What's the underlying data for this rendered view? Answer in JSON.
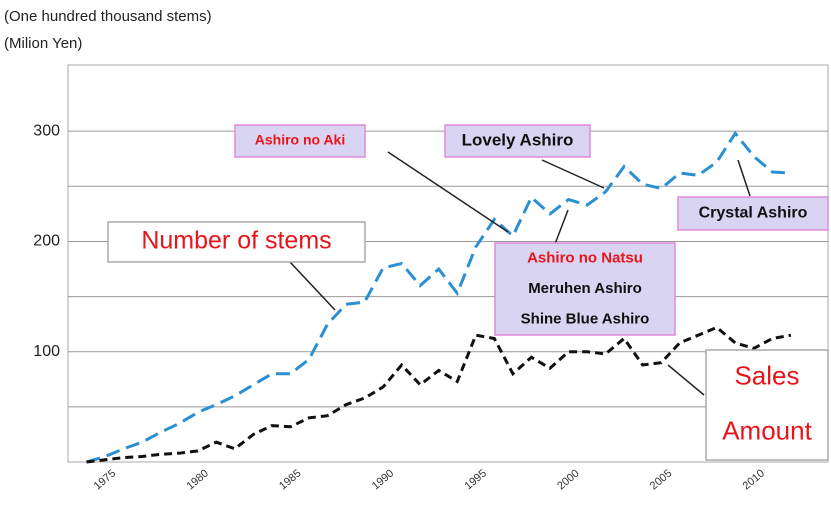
{
  "chart_data": {
    "type": "line",
    "axis_titles": [
      "(One hundred thousand stems)",
      "(Milion Yen)"
    ],
    "x": [
      1974,
      1975,
      1976,
      1977,
      1978,
      1979,
      1980,
      1981,
      1982,
      1983,
      1984,
      1985,
      1986,
      1987,
      1988,
      1989,
      1990,
      1991,
      1992,
      1993,
      1994,
      1995,
      1996,
      1997,
      1998,
      1999,
      2000,
      2001,
      2002,
      2003,
      2004,
      2005,
      2006,
      2007,
      2008,
      2009,
      2010,
      2011,
      2012
    ],
    "series": [
      {
        "name": "Number of stems",
        "color": "#2b8fd3",
        "values": [
          0,
          5,
          12,
          18,
          27,
          35,
          45,
          52,
          60,
          70,
          80,
          80,
          93,
          125,
          143,
          145,
          176,
          180,
          160,
          175,
          153,
          195,
          220,
          205,
          240,
          225,
          238,
          233,
          245,
          268,
          252,
          248,
          262,
          260,
          272,
          298,
          277,
          263,
          262
        ]
      },
      {
        "name": "Sales Amount",
        "color": "#111111",
        "values": [
          0,
          2,
          4,
          5,
          7,
          8,
          10,
          18,
          12,
          25,
          33,
          32,
          40,
          42,
          52,
          58,
          68,
          88,
          70,
          83,
          73,
          115,
          112,
          80,
          95,
          85,
          100,
          100,
          98,
          112,
          88,
          90,
          108,
          115,
          122,
          108,
          103,
          112,
          115
        ]
      }
    ],
    "xlim": [
      1973,
      2014
    ],
    "xticks": [
      1975,
      1980,
      1985,
      1990,
      1995,
      2000,
      2005,
      2010
    ],
    "ylim": [
      0,
      360
    ],
    "yticks": [
      100,
      200,
      300
    ],
    "ygrid": [
      50,
      100,
      150,
      200,
      250,
      300
    ],
    "annotations": [
      {
        "lines": [
          "Ashiro no Aki"
        ],
        "colors": [
          "#e8141a"
        ]
      },
      {
        "lines": [
          "Lovely Ashiro"
        ],
        "colors": [
          "#111111"
        ]
      },
      {
        "lines": [
          "Crystal Ashiro"
        ],
        "colors": [
          "#111111"
        ]
      },
      {
        "lines": [
          "Ashiro no Natsu",
          "Meruhen Ashiro",
          "Shine Blue Ashiro"
        ],
        "colors": [
          "#e8141a",
          "#111111",
          "#111111"
        ]
      },
      {
        "lines": [
          "Number of stems"
        ],
        "colors": [
          "#e8141a"
        ]
      },
      {
        "lines": [
          "Sales",
          "Amount"
        ],
        "colors": [
          "#e8141a",
          "#e8141a"
        ]
      }
    ]
  }
}
